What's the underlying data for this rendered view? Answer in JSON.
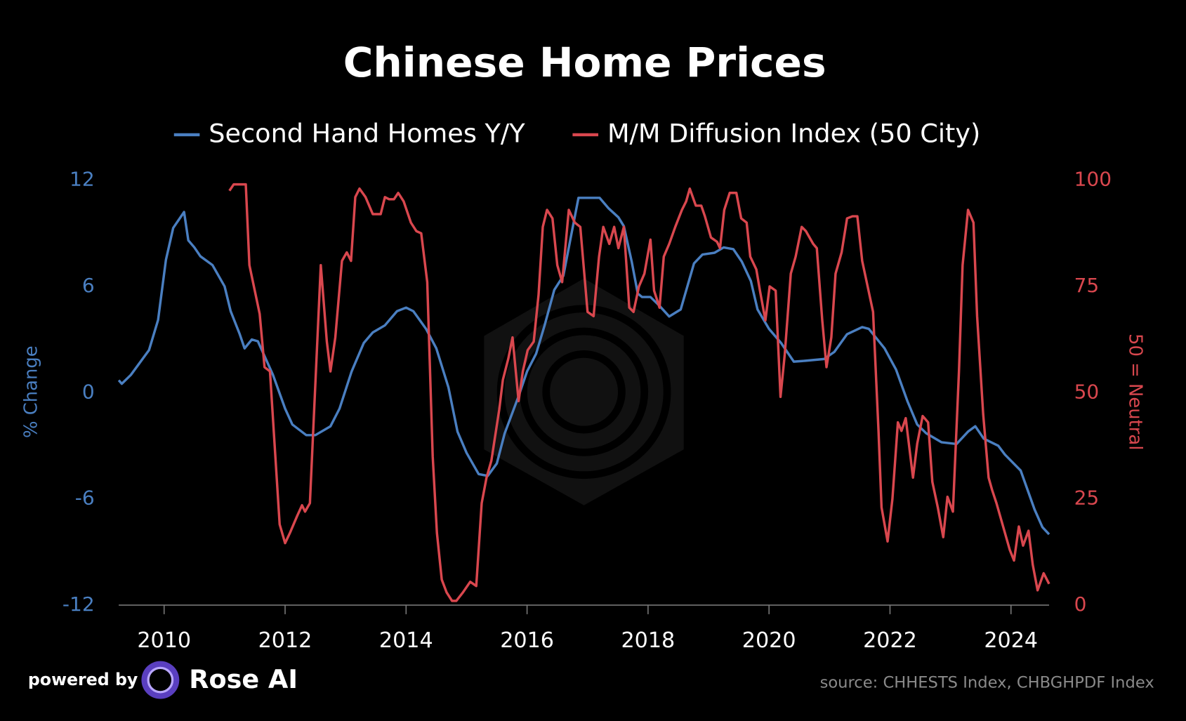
{
  "chart_data": {
    "type": "line",
    "title": "Chinese Home Prices",
    "y_label": "% Change",
    "y2_label": "50 = Neutral",
    "xlim": [
      2009.25,
      2024.63
    ],
    "xticks": [
      2010,
      2012,
      2014,
      2016,
      2018,
      2020,
      2022,
      2024
    ],
    "ylim": [
      -12,
      12
    ],
    "yticks": [
      -12,
      -6,
      0,
      6,
      12
    ],
    "y2lim": [
      0,
      100
    ],
    "y2ticks": [
      0,
      25,
      50,
      75,
      100
    ],
    "grid": false,
    "series": [
      {
        "name": "Second Hand Homes Y/Y",
        "color": "#4a7fc1",
        "axis": "y",
        "x": [
          2009.25,
          2009.3,
          2009.45,
          2009.75,
          2009.9,
          2010.03,
          2010.15,
          2010.33,
          2010.4,
          2010.5,
          2010.6,
          2010.8,
          2011.0,
          2011.1,
          2011.25,
          2011.33,
          2011.45,
          2011.55,
          2011.8,
          2012.0,
          2012.12,
          2012.35,
          2012.5,
          2012.75,
          2012.9,
          2013.1,
          2013.3,
          2013.45,
          2013.65,
          2013.85,
          2014.0,
          2014.12,
          2014.33,
          2014.5,
          2014.7,
          2014.85,
          2015.0,
          2015.2,
          2015.35,
          2015.5,
          2015.63,
          2015.86,
          2016.0,
          2016.15,
          2016.29,
          2016.45,
          2016.6,
          2016.73,
          2016.85,
          2017.0,
          2017.2,
          2017.35,
          2017.51,
          2017.6,
          2017.73,
          2017.83,
          2017.9,
          2018.04,
          2018.19,
          2018.35,
          2018.54,
          2018.76,
          2018.9,
          2019.1,
          2019.25,
          2019.41,
          2019.55,
          2019.7,
          2019.81,
          2020.0,
          2020.2,
          2020.41,
          2020.6,
          2020.91,
          2021.08,
          2021.29,
          2021.54,
          2021.65,
          2021.91,
          2022.1,
          2022.29,
          2022.45,
          2022.6,
          2022.85,
          2023.1,
          2023.29,
          2023.41,
          2023.55,
          2023.79,
          2023.9,
          2024.16,
          2024.39,
          2024.52,
          2024.63
        ],
        "values": [
          0.7,
          0.5,
          1.0,
          2.4,
          4.1,
          7.5,
          9.3,
          10.2,
          8.6,
          8.2,
          7.7,
          7.2,
          6.0,
          4.6,
          3.3,
          2.5,
          3.0,
          2.9,
          1.0,
          -0.9,
          -1.8,
          -2.4,
          -2.4,
          -1.9,
          -0.9,
          1.2,
          2.8,
          3.4,
          3.8,
          4.6,
          4.8,
          4.6,
          3.6,
          2.5,
          0.3,
          -2.2,
          -3.4,
          -4.6,
          -4.7,
          -4.0,
          -2.3,
          -0.2,
          1.2,
          2.2,
          3.8,
          5.8,
          6.6,
          8.9,
          11.0,
          11.0,
          11.0,
          10.4,
          9.9,
          9.4,
          7.4,
          5.6,
          5.4,
          5.4,
          4.9,
          4.3,
          4.7,
          7.3,
          7.8,
          7.9,
          8.2,
          8.1,
          7.4,
          6.3,
          4.7,
          3.6,
          2.8,
          1.75,
          1.8,
          1.9,
          2.3,
          3.3,
          3.7,
          3.6,
          2.5,
          1.3,
          -0.5,
          -1.8,
          -2.3,
          -2.8,
          -2.9,
          -2.2,
          -1.9,
          -2.6,
          -3.0,
          -3.5,
          -4.4,
          -6.6,
          -7.6,
          -8.0
        ]
      },
      {
        "name": "M/M Diffusion Index (50 City)",
        "color": "#d9474e",
        "axis": "y2",
        "x": [
          2011.08,
          2011.15,
          2011.35,
          2011.41,
          2011.58,
          2011.66,
          2011.75,
          2011.91,
          2012.0,
          2012.08,
          2012.2,
          2012.28,
          2012.33,
          2012.41,
          2012.59,
          2012.69,
          2012.75,
          2012.83,
          2012.94,
          2013.02,
          2013.09,
          2013.16,
          2013.23,
          2013.33,
          2013.45,
          2013.58,
          2013.65,
          2013.72,
          2013.8,
          2013.87,
          2013.96,
          2014.08,
          2014.17,
          2014.25,
          2014.35,
          2014.44,
          2014.51,
          2014.59,
          2014.67,
          2014.76,
          2014.83,
          2014.94,
          2015.06,
          2015.16,
          2015.25,
          2015.33,
          2015.41,
          2015.54,
          2015.6,
          2015.69,
          2015.76,
          2015.86,
          2015.93,
          2016.01,
          2016.11,
          2016.19,
          2016.26,
          2016.33,
          2016.42,
          2016.5,
          2016.58,
          2016.69,
          2016.79,
          2016.88,
          2017.0,
          2017.1,
          2017.19,
          2017.26,
          2017.36,
          2017.44,
          2017.51,
          2017.6,
          2017.69,
          2017.76,
          2017.85,
          2017.94,
          2018.04,
          2018.1,
          2018.19,
          2018.26,
          2018.35,
          2018.45,
          2018.56,
          2018.63,
          2018.69,
          2018.79,
          2018.88,
          2018.94,
          2019.04,
          2019.14,
          2019.19,
          2019.26,
          2019.35,
          2019.46,
          2019.54,
          2019.63,
          2019.69,
          2019.79,
          2019.85,
          2019.94,
          2020.01,
          2020.11,
          2020.19,
          2020.26,
          2020.36,
          2020.44,
          2020.54,
          2020.61,
          2020.73,
          2020.79,
          2020.88,
          2020.95,
          2021.03,
          2021.1,
          2021.2,
          2021.29,
          2021.38,
          2021.46,
          2021.54,
          2021.63,
          2021.72,
          2021.81,
          2021.86,
          2021.96,
          2022.04,
          2022.13,
          2022.19,
          2022.26,
          2022.38,
          2022.45,
          2022.54,
          2022.63,
          2022.7,
          2022.79,
          2022.88,
          2022.95,
          2023.04,
          2023.14,
          2023.2,
          2023.29,
          2023.38,
          2023.44,
          2023.54,
          2023.63,
          2023.69,
          2023.76,
          2023.88,
          2023.98,
          2024.05,
          2024.13,
          2024.2,
          2024.29,
          2024.36,
          2024.44,
          2024.54,
          2024.63
        ],
        "values": [
          97.5,
          99,
          99,
          80,
          68.5,
          56,
          55,
          19,
          14.6,
          17,
          21,
          23.5,
          22,
          24,
          80,
          62,
          55,
          63,
          81,
          83,
          81,
          96,
          98,
          96,
          92,
          92,
          96,
          95.5,
          95.5,
          97,
          95,
          90,
          88,
          87.5,
          76,
          35,
          17,
          6,
          3,
          1,
          1,
          3,
          5.5,
          4.5,
          24,
          30,
          34,
          46,
          53,
          58,
          63,
          48,
          55,
          60,
          62,
          73,
          89,
          93,
          91,
          80,
          76,
          93,
          90,
          89,
          69,
          68,
          82,
          89,
          85,
          89,
          84,
          89,
          70,
          69,
          75,
          78,
          86,
          74,
          70,
          82,
          85,
          89,
          93,
          95,
          98,
          94,
          94,
          91.5,
          86.5,
          85.5,
          84,
          93,
          97,
          97,
          91,
          90,
          82,
          79,
          74,
          67,
          75,
          74,
          49,
          59,
          78,
          82,
          89,
          88,
          85,
          84,
          67,
          56,
          63,
          78,
          83,
          91,
          91.5,
          91.5,
          81,
          75,
          69,
          41,
          23,
          15,
          25,
          43,
          41,
          44,
          30,
          38,
          44.5,
          43,
          29,
          23,
          16,
          25.5,
          22,
          55,
          80,
          93,
          90,
          68,
          45,
          30,
          27,
          24,
          18,
          13,
          10.5,
          18.5,
          14,
          17.5,
          9.5,
          3.5,
          7.5,
          5
        ]
      }
    ]
  },
  "branding": {
    "powered_by": "powered by",
    "brand": "Rose AI",
    "source": "source: CHHESTS Index, CHBGHPDF Index"
  }
}
